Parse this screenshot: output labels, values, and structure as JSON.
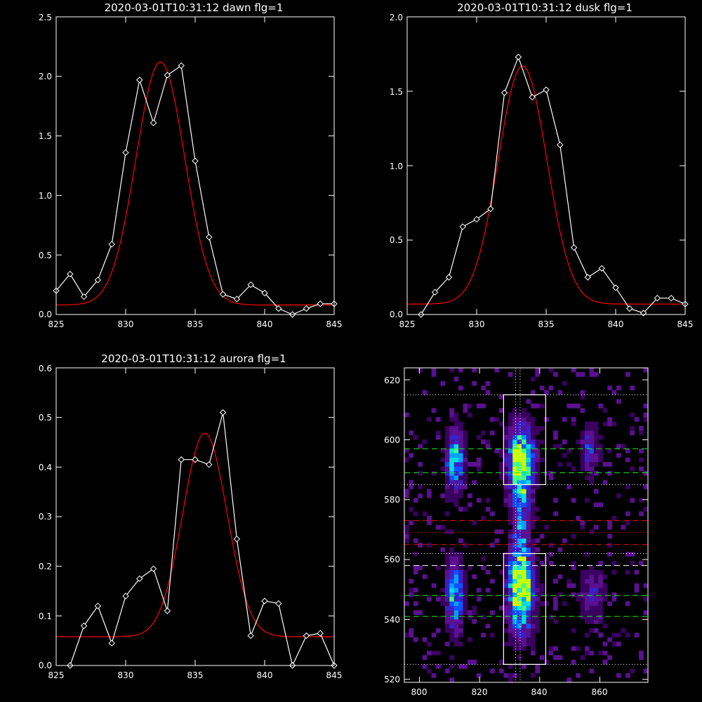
{
  "chart_data": [
    {
      "type": "line",
      "title": "2020-03-01T10:31:12 dawn flg=1",
      "xlim": [
        825,
        845
      ],
      "ylim": [
        0,
        2.5
      ],
      "xticks": [
        825,
        830,
        835,
        840,
        845
      ],
      "xtick_labels": [
        "825",
        "830",
        "835",
        "840",
        "845"
      ],
      "yticks": [
        0,
        0.5,
        1.0,
        1.5,
        2.0,
        2.5
      ],
      "ytick_labels": [
        "0.0",
        "0.5",
        "1.0",
        "1.5",
        "2.0",
        "2.5"
      ],
      "series": [
        {
          "style": "observed",
          "color": "#ffffff",
          "marker": "diamond",
          "x": [
            825,
            826,
            827,
            828,
            829,
            830,
            831,
            832,
            833,
            834,
            835,
            836,
            837,
            838,
            839,
            840,
            841,
            842,
            843,
            844,
            845
          ],
          "y": [
            0.2,
            0.34,
            0.15,
            0.29,
            0.59,
            1.36,
            1.97,
            1.61,
            2.01,
            2.09,
            1.29,
            0.65,
            0.17,
            0.13,
            0.25,
            0.18,
            0.05,
            0.0,
            0.05,
            0.09,
            0.09
          ]
        },
        {
          "style": "fit",
          "color": "#ff0000",
          "function": "gaussian",
          "amplitude": 2.04,
          "center": 832.5,
          "sigma": 1.75,
          "baseline": 0.08
        }
      ]
    },
    {
      "type": "line",
      "title": "2020-03-01T10:31:12 dusk flg=1",
      "xlim": [
        825,
        845
      ],
      "ylim": [
        0,
        2.0
      ],
      "xticks": [
        825,
        830,
        835,
        840,
        845
      ],
      "xtick_labels": [
        "825",
        "830",
        "835",
        "840",
        "845"
      ],
      "yticks": [
        0,
        0.5,
        1.0,
        1.5,
        2.0
      ],
      "ytick_labels": [
        "0.0",
        "0.5",
        "1.0",
        "1.5",
        "2.0"
      ],
      "series": [
        {
          "style": "observed",
          "color": "#ffffff",
          "marker": "diamond",
          "x": [
            826,
            827,
            828,
            829,
            830,
            831,
            832,
            833,
            834,
            835,
            836,
            837,
            838,
            839,
            840,
            841,
            842,
            843,
            844,
            845
          ],
          "y": [
            0.0,
            0.15,
            0.25,
            0.59,
            0.64,
            0.71,
            1.49,
            1.73,
            1.46,
            1.51,
            1.14,
            0.45,
            0.25,
            0.31,
            0.18,
            0.04,
            0.01,
            0.11,
            0.11,
            0.07
          ]
        },
        {
          "style": "fit",
          "color": "#ff0000",
          "function": "gaussian",
          "amplitude": 1.6,
          "center": 833.3,
          "sigma": 1.75,
          "baseline": 0.07
        }
      ]
    },
    {
      "type": "line",
      "title": "2020-03-01T10:31:12 aurora flg=1",
      "xlim": [
        825,
        845
      ],
      "ylim": [
        0,
        0.6
      ],
      "xticks": [
        825,
        830,
        835,
        840,
        845
      ],
      "xtick_labels": [
        "825",
        "830",
        "835",
        "840",
        "845"
      ],
      "yticks": [
        0,
        0.1,
        0.2,
        0.3,
        0.4,
        0.5,
        0.6
      ],
      "ytick_labels": [
        "0.0",
        "0.1",
        "0.2",
        "0.3",
        "0.4",
        "0.5",
        "0.6"
      ],
      "series": [
        {
          "style": "observed",
          "color": "#ffffff",
          "marker": "diamond",
          "x": [
            826,
            827,
            828,
            829,
            830,
            831,
            832,
            833,
            834,
            835,
            836,
            837,
            838,
            839,
            840,
            841,
            842,
            843,
            844,
            845
          ],
          "y": [
            0.0,
            0.08,
            0.12,
            0.045,
            0.14,
            0.175,
            0.195,
            0.11,
            0.415,
            0.415,
            0.405,
            0.51,
            0.255,
            0.06,
            0.13,
            0.125,
            0.0,
            0.06,
            0.065,
            0.0
          ]
        },
        {
          "style": "fit",
          "color": "#ff0000",
          "function": "gaussian",
          "amplitude": 0.41,
          "center": 835.7,
          "sigma": 1.6,
          "baseline": 0.058
        }
      ]
    },
    {
      "type": "heatmap",
      "title": "",
      "xlim": [
        795,
        876
      ],
      "ylim": [
        519,
        624
      ],
      "xticks": [
        800,
        820,
        840,
        860
      ],
      "xtick_labels": [
        "800",
        "820",
        "840",
        "860"
      ],
      "yticks": [
        520,
        540,
        560,
        580,
        600,
        620
      ],
      "ytick_labels": [
        "520",
        "540",
        "560",
        "580",
        "600",
        "620"
      ],
      "colors": [
        "#000000",
        "#3a0060",
        "#5a1090",
        "#3a20c8",
        "#1050ff",
        "#00a0ff",
        "#00e0e0",
        "#40ff80",
        "#c8ff00"
      ],
      "hotspots": [
        {
          "x": 833,
          "y": 592,
          "strength": 0.95,
          "sx": 3,
          "sy": 8
        },
        {
          "x": 833,
          "y": 548,
          "strength": 1.0,
          "sx": 3,
          "sy": 9
        },
        {
          "x": 833,
          "y": 570,
          "strength": 0.45,
          "sx": 2,
          "sy": 14
        },
        {
          "x": 811,
          "y": 592,
          "strength": 0.7,
          "sx": 2,
          "sy": 7
        },
        {
          "x": 811,
          "y": 547,
          "strength": 0.65,
          "sx": 2,
          "sy": 8
        },
        {
          "x": 856,
          "y": 596,
          "strength": 0.4,
          "sx": 2,
          "sy": 5
        },
        {
          "x": 857,
          "y": 548,
          "strength": 0.3,
          "sx": 3,
          "sy": 6
        }
      ],
      "boxes": [
        {
          "x0": 828,
          "x1": 842,
          "y0": 585,
          "y1": 615,
          "color": "#ffffff"
        },
        {
          "x0": 828,
          "x1": 842,
          "y0": 525,
          "y1": 562,
          "color": "#ffffff"
        }
      ],
      "hlines": [
        {
          "y": 615,
          "color": "#ffffff",
          "dash": "dotted"
        },
        {
          "y": 597,
          "color": "#00ff00",
          "dash": "dashed"
        },
        {
          "y": 589,
          "color": "#00ff00",
          "dash": "dashed"
        },
        {
          "y": 585,
          "color": "#ffffff",
          "dash": "dotted"
        },
        {
          "y": 573,
          "color": "#ff0000",
          "dash": "dashed"
        },
        {
          "y": 569,
          "color": "#ff0000",
          "dash": "dotted"
        },
        {
          "y": 565,
          "color": "#ff0000",
          "dash": "dashed"
        },
        {
          "y": 562,
          "color": "#ffffff",
          "dash": "dotted"
        },
        {
          "y": 558,
          "color": "#ffffff",
          "dash": "dashed"
        },
        {
          "y": 548,
          "color": "#00ff00",
          "dash": "dashed"
        },
        {
          "y": 541,
          "color": "#00ff00",
          "dash": "dashed"
        },
        {
          "y": 525,
          "color": "#ffffff",
          "dash": "dotted"
        }
      ],
      "vlines": [
        {
          "x": 832,
          "color": "#ffffff",
          "dash": "dotted"
        },
        {
          "x": 833.5,
          "color": "#ffffff",
          "dash": "dotted"
        }
      ]
    }
  ]
}
